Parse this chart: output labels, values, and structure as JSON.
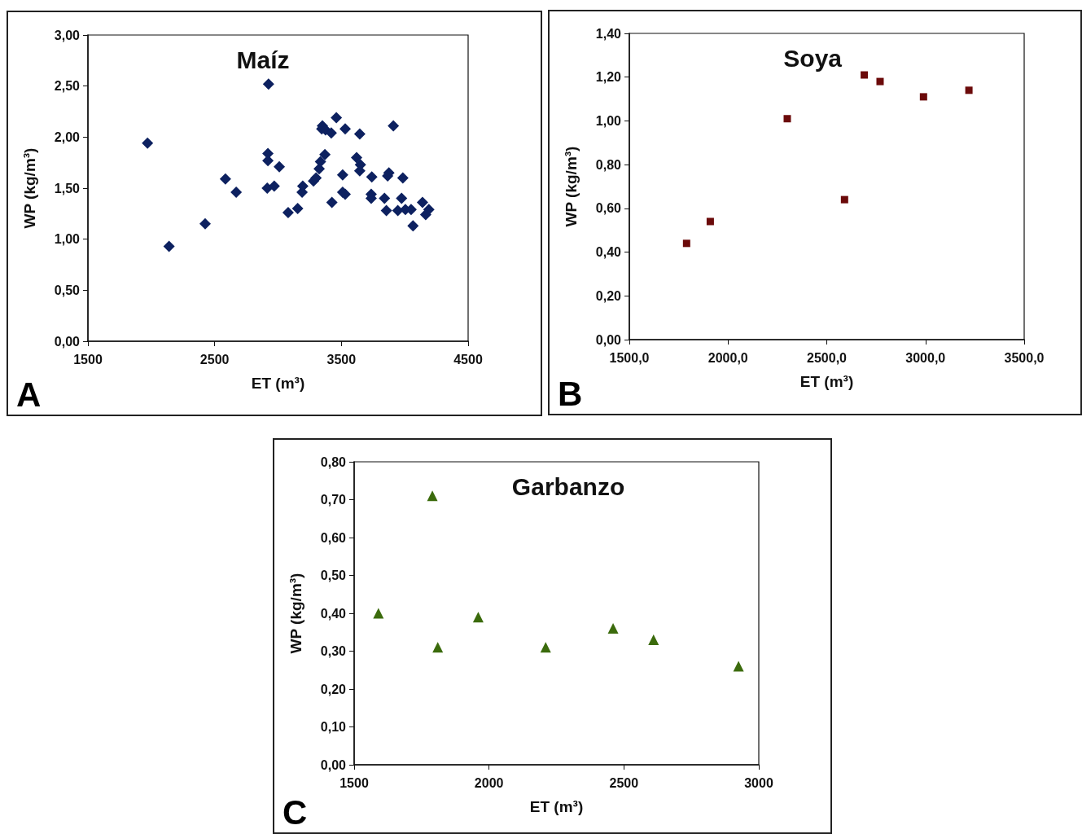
{
  "chart_data": [
    {
      "type": "scatter",
      "title": "Maíz",
      "xlabel": "ET (m³)",
      "ylabel": "WP (kg/m³)",
      "annotations": [
        "A"
      ],
      "marker": "diamond",
      "xlim": [
        1500,
        4500
      ],
      "xticks": [
        1500,
        2500,
        3500,
        4500
      ],
      "ylim": [
        0,
        3
      ],
      "yticks": [
        {
          "value": 0,
          "label": "0,00"
        },
        {
          "value": 0.5,
          "label": "0,50"
        },
        {
          "value": 1,
          "label": "1,00"
        },
        {
          "value": 1.5,
          "label": "1,50"
        },
        {
          "value": 2,
          "label": "2,00"
        },
        {
          "value": 2.5,
          "label": "2,50"
        },
        {
          "value": 3,
          "label": "3,00"
        }
      ],
      "series": [
        {
          "color": "#0d2160",
          "x": [
            1970,
            2140,
            2425,
            2585,
            2670,
            2925,
            2920,
            2920,
            2915,
            2970,
            3010,
            3080,
            3155,
            3190,
            3195,
            3280,
            3300,
            3325,
            3335,
            3370,
            3345,
            3350,
            3375,
            3420,
            3460,
            3425,
            3530,
            3510,
            3510,
            3530,
            3645,
            3620,
            3650,
            3645,
            3740,
            3735,
            3735,
            3840,
            3855,
            3865,
            3875,
            3910,
            3945,
            3975,
            3985,
            4005,
            4065,
            4050,
            4140,
            4165,
            4190
          ],
          "values": [
            1.94,
            0.93,
            1.15,
            1.59,
            1.46,
            2.52,
            1.84,
            1.77,
            1.5,
            1.52,
            1.71,
            1.26,
            1.3,
            1.46,
            1.52,
            1.57,
            1.6,
            1.69,
            1.76,
            1.83,
            2.08,
            2.11,
            2.07,
            2.04,
            2.19,
            1.36,
            2.08,
            1.63,
            1.46,
            1.44,
            2.03,
            1.8,
            1.73,
            1.67,
            1.61,
            1.44,
            1.4,
            1.4,
            1.28,
            1.62,
            1.65,
            2.11,
            1.28,
            1.4,
            1.6,
            1.29,
            1.13,
            1.29,
            1.36,
            1.24,
            1.29
          ]
        }
      ]
    },
    {
      "type": "scatter",
      "title": "Soya",
      "xlabel": "ET (m³)",
      "ylabel": "WP (kg/m³)",
      "annotations": [
        "B"
      ],
      "marker": "square",
      "xlim": [
        1500,
        3500
      ],
      "xticks": [
        {
          "value": 1500,
          "label": "1500,0"
        },
        {
          "value": 2000,
          "label": "2000,0"
        },
        {
          "value": 2500,
          "label": "2500,0"
        },
        {
          "value": 3000,
          "label": "3000,0"
        },
        {
          "value": 3500,
          "label": "3500,0"
        }
      ],
      "ylim": [
        0,
        1.4
      ],
      "yticks": [
        {
          "value": 0,
          "label": "0,00"
        },
        {
          "value": 0.2,
          "label": "0,20"
        },
        {
          "value": 0.4,
          "label": "0,40"
        },
        {
          "value": 0.6,
          "label": "0,60"
        },
        {
          "value": 0.8,
          "label": "0,80"
        },
        {
          "value": 1,
          "label": "1,00"
        },
        {
          "value": 1.2,
          "label": "1,20"
        },
        {
          "value": 1.4,
          "label": "1,40"
        }
      ],
      "series": [
        {
          "color": "#6b0a0a",
          "x": [
            1790,
            1910,
            2300,
            2590,
            2690,
            2770,
            2990,
            3220
          ],
          "values": [
            0.44,
            0.54,
            1.01,
            0.64,
            1.21,
            1.18,
            1.11,
            1.14
          ]
        }
      ]
    },
    {
      "type": "scatter",
      "title": "Garbanzo",
      "xlabel": "ET (m³)",
      "ylabel": "WP (kg/m³)",
      "annotations": [
        "C"
      ],
      "marker": "triangle",
      "xlim": [
        1500,
        3000
      ],
      "xticks": [
        1500,
        2000,
        2500,
        3000
      ],
      "ylim": [
        0,
        0.8
      ],
      "yticks": [
        {
          "value": 0,
          "label": "0,00"
        },
        {
          "value": 0.1,
          "label": "0,10"
        },
        {
          "value": 0.2,
          "label": "0,20"
        },
        {
          "value": 0.3,
          "label": "0,30"
        },
        {
          "value": 0.4,
          "label": "0,40"
        },
        {
          "value": 0.5,
          "label": "0,50"
        },
        {
          "value": 0.6,
          "label": "0,60"
        },
        {
          "value": 0.7,
          "label": "0,70"
        },
        {
          "value": 0.8,
          "label": "0,80"
        }
      ],
      "series": [
        {
          "color": "#3b6b0c",
          "x": [
            1790,
            1590,
            1810,
            1960,
            2210,
            2460,
            2610,
            2925
          ],
          "values": [
            0.71,
            0.4,
            0.31,
            0.39,
            0.31,
            0.36,
            0.33,
            0.26
          ]
        }
      ]
    }
  ]
}
